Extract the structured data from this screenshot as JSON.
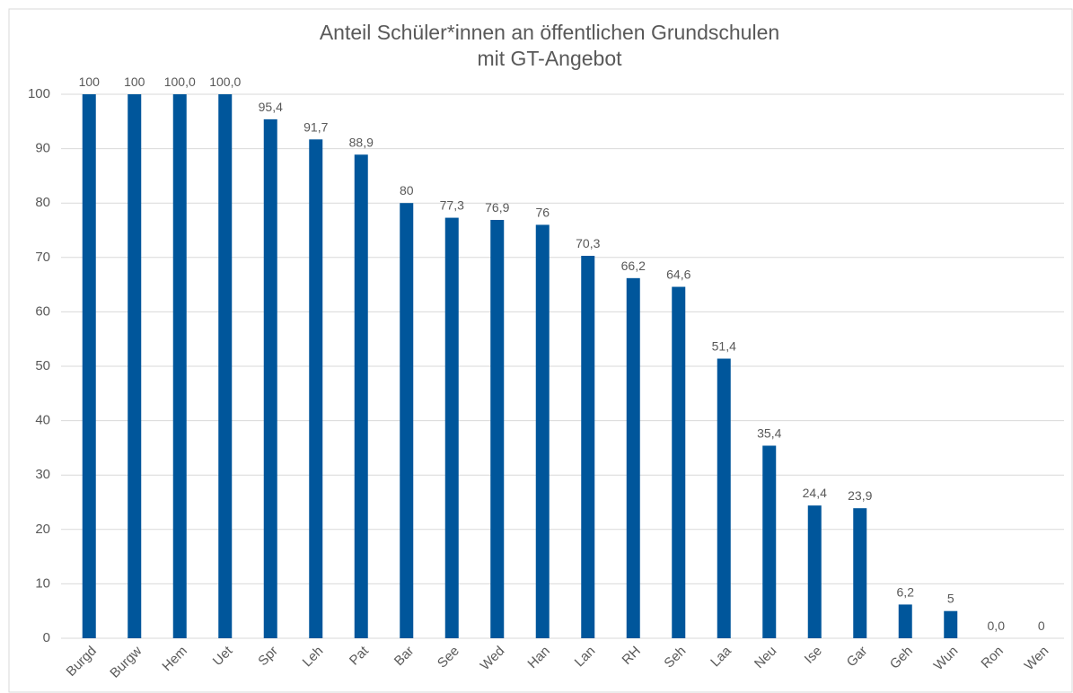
{
  "chart_data": {
    "type": "bar",
    "title": [
      "Anteil Schüler*innen an öffentlichen Grundschulen",
      "mit GT-Angebot"
    ],
    "categories": [
      "Burgd",
      "Burgw",
      "Hem",
      "Uet",
      "Spr",
      "Leh",
      "Pat",
      "Bar",
      "See",
      "Wed",
      "Han",
      "Lan",
      "RH",
      "Seh",
      "Laa",
      "Neu",
      "Ise",
      "Gar",
      "Geh",
      "Wun",
      "Ron",
      "Wen"
    ],
    "values": [
      100,
      100,
      100,
      100,
      95.4,
      91.7,
      88.9,
      80,
      77.3,
      76.9,
      76,
      70.3,
      66.2,
      64.6,
      51.4,
      35.4,
      24.4,
      23.9,
      6.2,
      5,
      0,
      0
    ],
    "value_labels": [
      "100",
      "100",
      "100,0",
      "100,0",
      "95,4",
      "91,7",
      "88,9",
      "80",
      "77,3",
      "76,9",
      "76",
      "70,3",
      "66,2",
      "64,6",
      "51,4",
      "35,4",
      "24,4",
      "23,9",
      "6,2",
      "5",
      "0,0",
      "0"
    ],
    "color": "#00569b",
    "ylim": [
      0,
      100
    ],
    "yticks": [
      0,
      10,
      20,
      30,
      40,
      50,
      60,
      70,
      80,
      90,
      100
    ],
    "grid": true
  }
}
